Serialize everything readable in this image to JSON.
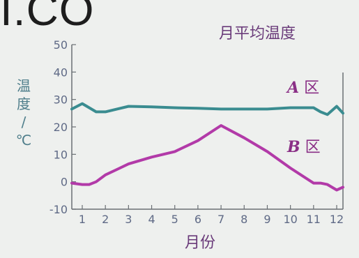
{
  "watermark": "I.CO",
  "chart_data": {
    "type": "line",
    "title": "月平均温度",
    "ylabel": "温度/℃",
    "xlabel": "月份",
    "categories": [
      "1",
      "2",
      "3",
      "4",
      "5",
      "6",
      "7",
      "8",
      "9",
      "10",
      "11",
      "12"
    ],
    "yticks": [
      "50",
      "40",
      "30",
      "20",
      "10",
      "0",
      "-10"
    ],
    "ylim": [
      -10,
      50
    ],
    "x": [
      0.6,
      1,
      1.3,
      1.6,
      2,
      2.5,
      3,
      4,
      5,
      6,
      7,
      8,
      9,
      10,
      11,
      11.3,
      11.6,
      12,
      12.4
    ],
    "series": [
      {
        "name": "A 区",
        "name_letter": "A",
        "name_suffix": "区",
        "color": "#3a8c90",
        "values": [
          26.5,
          28.5,
          27,
          25.5,
          25.5,
          26.5,
          27.5,
          27.3,
          27,
          26.8,
          26.5,
          26.5,
          26.5,
          27,
          27,
          25.5,
          24.5,
          27.5,
          25
        ]
      },
      {
        "name": "B 区",
        "name_letter": "B",
        "name_suffix": "区",
        "color": "#b23aa8",
        "values": [
          -0.5,
          -1,
          -1,
          0,
          2.5,
          4.5,
          6.5,
          9,
          11,
          15,
          20.5,
          16,
          11,
          5,
          -0.5,
          -0.5,
          -1,
          -3,
          -2
        ]
      }
    ],
    "grid": false,
    "legend": "inline-right"
  }
}
